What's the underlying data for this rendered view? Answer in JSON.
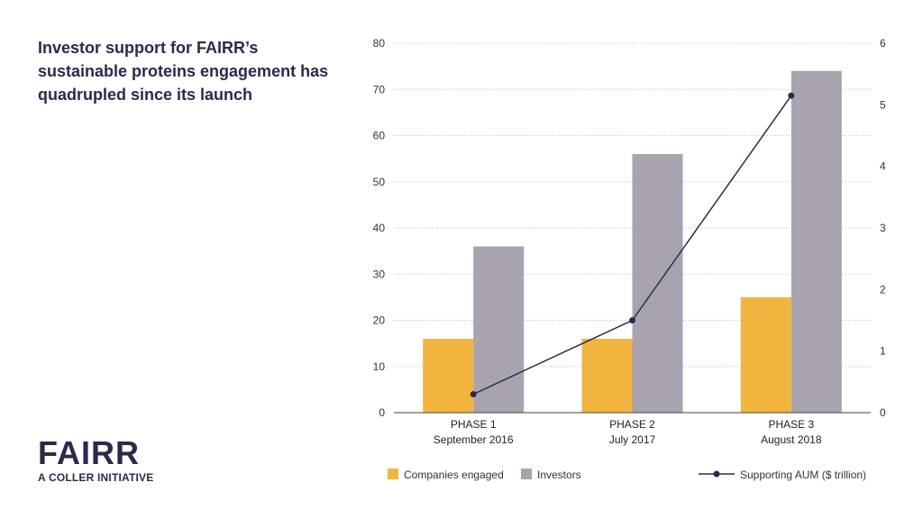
{
  "page": {
    "title": "Investor support for FAIRR’s sustainable proteins engagement has quadrupled since its launch"
  },
  "logo": {
    "wordmark": "FAIRR",
    "tagline": "A COLLER INITIATIVE"
  },
  "colors": {
    "companies": "#f1b43e",
    "investors": "#a9a3af",
    "line": "#2b2a4c",
    "grid": "#bdbdbd",
    "text": "#2b2a4c"
  },
  "chart_data": {
    "type": "bar",
    "categories": [
      [
        "PHASE 1",
        "September 2016"
      ],
      [
        "PHASE 2",
        "July 2017"
      ],
      [
        "PHASE 3",
        "August 2018"
      ]
    ],
    "series": [
      {
        "name": "Companies engaged",
        "type": "bar",
        "axis": "left",
        "values": [
          16,
          16,
          25
        ]
      },
      {
        "name": "Investors",
        "type": "bar",
        "axis": "left",
        "values": [
          36,
          56,
          74
        ]
      },
      {
        "name": "Supporting AUM ($ trillion)",
        "type": "line",
        "axis": "right",
        "values": [
          0.3,
          1.5,
          5.15
        ]
      }
    ],
    "ylim": [
      0,
      80
    ],
    "y_ticks": [
      0,
      10,
      20,
      30,
      40,
      50,
      60,
      70,
      80
    ],
    "y2lim": [
      0,
      6
    ],
    "y2_ticks": [
      0,
      1,
      2,
      3,
      4,
      5,
      6
    ],
    "grid": "horizontal dotted",
    "legend_position": "bottom"
  }
}
